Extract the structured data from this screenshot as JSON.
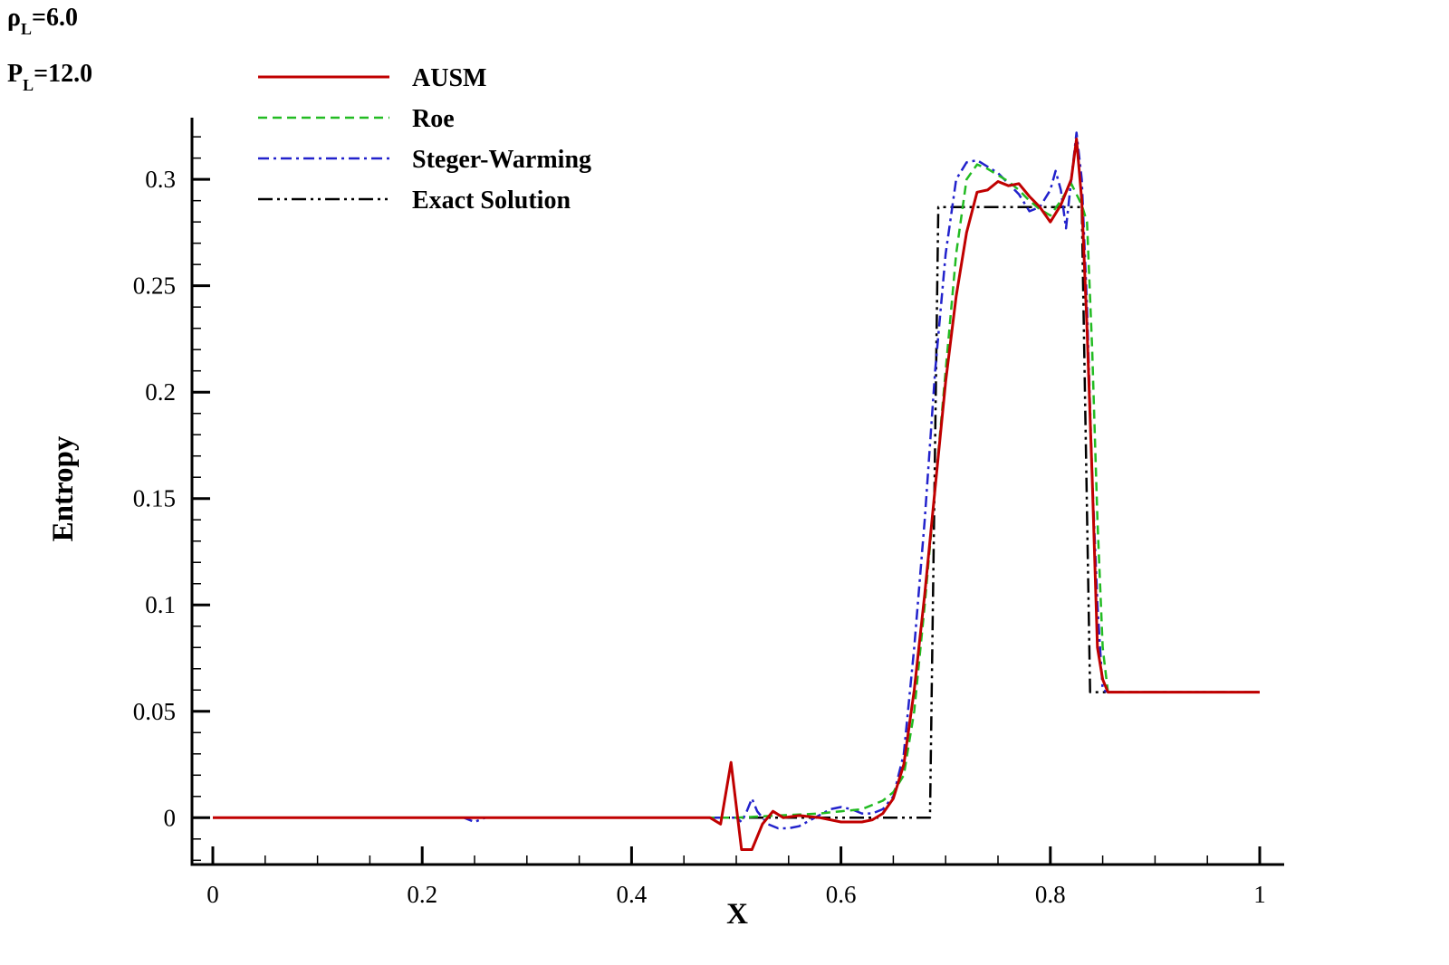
{
  "conditions": {
    "rho": {
      "symbol": "ρ",
      "sub": "L",
      "value": "=6.0"
    },
    "p": {
      "symbol": "P",
      "sub": "L",
      "value": "=12.0"
    }
  },
  "chart_data": {
    "type": "line",
    "xlabel": "X",
    "ylabel": "Entropy",
    "xlim": [
      0,
      1
    ],
    "ylim": [
      -0.022,
      0.329
    ],
    "x_ticks": [
      0,
      0.2,
      0.4,
      0.6,
      0.8,
      1
    ],
    "x_tick_labels": [
      "0",
      "0.2",
      "0.4",
      "0.6",
      "0.8",
      "1"
    ],
    "y_ticks": [
      0,
      0.05,
      0.1,
      0.15,
      0.2,
      0.25,
      0.3
    ],
    "y_tick_labels": [
      "0",
      "0.05",
      "0.1",
      "0.15",
      "0.2",
      "0.25",
      "0.3"
    ],
    "grid": false,
    "legend_position": "top-left",
    "series": [
      {
        "name": "AUSM",
        "color": "#c00000",
        "dash": "solid",
        "points": [
          [
            0,
            0
          ],
          [
            0.45,
            0
          ],
          [
            0.475,
            0
          ],
          [
            0.485,
            -0.003
          ],
          [
            0.495,
            0.026
          ],
          [
            0.505,
            -0.015
          ],
          [
            0.515,
            -0.015
          ],
          [
            0.525,
            -0.003
          ],
          [
            0.535,
            0.003
          ],
          [
            0.545,
            0
          ],
          [
            0.56,
            0.001
          ],
          [
            0.58,
            0
          ],
          [
            0.6,
            -0.002
          ],
          [
            0.62,
            -0.002
          ],
          [
            0.63,
            -0.001
          ],
          [
            0.64,
            0.002
          ],
          [
            0.65,
            0.009
          ],
          [
            0.66,
            0.025
          ],
          [
            0.67,
            0.06
          ],
          [
            0.68,
            0.105
          ],
          [
            0.69,
            0.155
          ],
          [
            0.7,
            0.205
          ],
          [
            0.71,
            0.245
          ],
          [
            0.72,
            0.275
          ],
          [
            0.73,
            0.294
          ],
          [
            0.74,
            0.295
          ],
          [
            0.75,
            0.299
          ],
          [
            0.76,
            0.297
          ],
          [
            0.77,
            0.298
          ],
          [
            0.78,
            0.292
          ],
          [
            0.79,
            0.287
          ],
          [
            0.8,
            0.28
          ],
          [
            0.81,
            0.288
          ],
          [
            0.82,
            0.3
          ],
          [
            0.825,
            0.319
          ],
          [
            0.83,
            0.29
          ],
          [
            0.835,
            0.23
          ],
          [
            0.84,
            0.16
          ],
          [
            0.845,
            0.08
          ],
          [
            0.85,
            0.065
          ],
          [
            0.855,
            0.059
          ],
          [
            1,
            0.059
          ]
        ]
      },
      {
        "name": "Roe",
        "color": "#22bb22",
        "dash": "dashed",
        "points": [
          [
            0,
            0
          ],
          [
            0.5,
            0
          ],
          [
            0.54,
            0.001
          ],
          [
            0.58,
            0.002
          ],
          [
            0.6,
            0.003
          ],
          [
            0.62,
            0.004
          ],
          [
            0.64,
            0.008
          ],
          [
            0.65,
            0.012
          ],
          [
            0.66,
            0.02
          ],
          [
            0.67,
            0.05
          ],
          [
            0.68,
            0.1
          ],
          [
            0.69,
            0.155
          ],
          [
            0.7,
            0.21
          ],
          [
            0.71,
            0.265
          ],
          [
            0.72,
            0.3
          ],
          [
            0.73,
            0.307
          ],
          [
            0.74,
            0.305
          ],
          [
            0.75,
            0.302
          ],
          [
            0.76,
            0.299
          ],
          [
            0.77,
            0.295
          ],
          [
            0.78,
            0.29
          ],
          [
            0.79,
            0.286
          ],
          [
            0.8,
            0.283
          ],
          [
            0.81,
            0.29
          ],
          [
            0.82,
            0.298
          ],
          [
            0.83,
            0.288
          ],
          [
            0.835,
            0.28
          ],
          [
            0.84,
            0.22
          ],
          [
            0.845,
            0.14
          ],
          [
            0.85,
            0.08
          ],
          [
            0.855,
            0.059
          ],
          [
            1,
            0.059
          ]
        ]
      },
      {
        "name": "Steger-Warming",
        "color": "#2222cc",
        "dash": "dashdot",
        "points": [
          [
            0,
            0
          ],
          [
            0.24,
            0
          ],
          [
            0.25,
            -0.002
          ],
          [
            0.26,
            0
          ],
          [
            0.5,
            0
          ],
          [
            0.505,
            -0.002
          ],
          [
            0.51,
            0.003
          ],
          [
            0.515,
            0.009
          ],
          [
            0.52,
            0.003
          ],
          [
            0.53,
            -0.003
          ],
          [
            0.54,
            -0.005
          ],
          [
            0.55,
            -0.005
          ],
          [
            0.56,
            -0.004
          ],
          [
            0.575,
            0
          ],
          [
            0.59,
            0.004
          ],
          [
            0.6,
            0.005
          ],
          [
            0.61,
            0.004
          ],
          [
            0.62,
            0.002
          ],
          [
            0.63,
            0.002
          ],
          [
            0.64,
            0.004
          ],
          [
            0.65,
            0.01
          ],
          [
            0.66,
            0.03
          ],
          [
            0.67,
            0.08
          ],
          [
            0.68,
            0.14
          ],
          [
            0.69,
            0.21
          ],
          [
            0.7,
            0.265
          ],
          [
            0.71,
            0.3
          ],
          [
            0.72,
            0.308
          ],
          [
            0.73,
            0.309
          ],
          [
            0.74,
            0.306
          ],
          [
            0.75,
            0.303
          ],
          [
            0.76,
            0.298
          ],
          [
            0.77,
            0.293
          ],
          [
            0.78,
            0.285
          ],
          [
            0.79,
            0.287
          ],
          [
            0.8,
            0.295
          ],
          [
            0.805,
            0.304
          ],
          [
            0.81,
            0.295
          ],
          [
            0.815,
            0.277
          ],
          [
            0.82,
            0.3
          ],
          [
            0.825,
            0.322
          ],
          [
            0.83,
            0.3
          ],
          [
            0.835,
            0.24
          ],
          [
            0.84,
            0.16
          ],
          [
            0.845,
            0.1
          ],
          [
            0.85,
            0.06
          ],
          [
            0.855,
            0.059
          ],
          [
            1,
            0.059
          ]
        ]
      },
      {
        "name": "Exact Solution",
        "color": "#000000",
        "dash": "dashdotdot",
        "points": [
          [
            0,
            0
          ],
          [
            0.685,
            0
          ],
          [
            0.693,
            0.287
          ],
          [
            0.83,
            0.287
          ],
          [
            0.838,
            0.059
          ],
          [
            1,
            0.059
          ]
        ]
      }
    ]
  }
}
